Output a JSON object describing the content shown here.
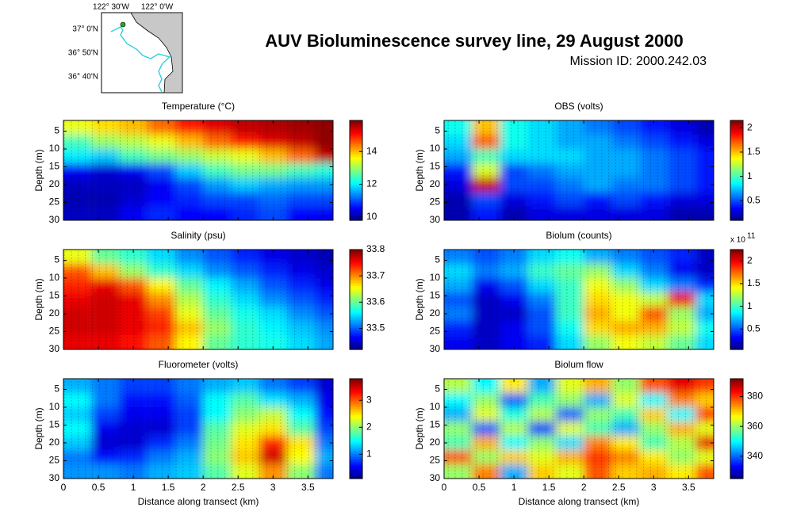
{
  "title": "AUV Bioluminescence survey line, 29 August 2000",
  "subtitle": "Mission ID: 2000.242.03",
  "map": {
    "lon_labels": [
      "122° 30'W",
      "122° 0'W"
    ],
    "lat_labels": [
      "37° 0'N",
      "36° 50'N",
      "36° 40'N"
    ]
  },
  "chart_data": [
    {
      "type": "heatmap",
      "title": "Temperature (°C)",
      "ylabel": "Depth (m)",
      "colormap": "jet",
      "xtick_labels": false,
      "x": [
        0.2,
        0.6,
        1.0,
        1.4,
        1.8,
        2.2,
        2.6,
        3.0,
        3.4,
        3.8
      ],
      "y": [
        4,
        8,
        12,
        16,
        20,
        24,
        28
      ],
      "values": [
        [
          13.5,
          13.8,
          14,
          14.5,
          15,
          15.3,
          15.5,
          15.6,
          15.7,
          15.8
        ],
        [
          12.5,
          13,
          13.2,
          13.5,
          14,
          14.5,
          15,
          15.3,
          15.5,
          15.8
        ],
        [
          12,
          11.8,
          12.5,
          12.8,
          13,
          13.3,
          13.5,
          14,
          14.5,
          15.5
        ],
        [
          10.5,
          10.3,
          10.5,
          11,
          11.8,
          12.5,
          12.8,
          12.8,
          12.5,
          12.3
        ],
        [
          10.2,
          10.2,
          10.2,
          10.5,
          11,
          11.5,
          11.8,
          11.6,
          11.5,
          11.5
        ],
        [
          10.1,
          10.1,
          10.3,
          10.6,
          10.8,
          11,
          11,
          11.2,
          11,
          11
        ],
        [
          10.2,
          10.2,
          10.5,
          10.8,
          10.6,
          10.6,
          10.8,
          11,
          10.6,
          10.5
        ]
      ],
      "xlim": [
        0,
        3.86
      ],
      "ylim": [
        2,
        30
      ],
      "y_reversed": true,
      "xticks": [
        0,
        0.5,
        1,
        1.5,
        2,
        2.5,
        3,
        3.5
      ],
      "yticks": [
        5,
        10,
        15,
        20,
        25,
        30
      ],
      "zlim": [
        9.8,
        15.9
      ],
      "zticks": [
        10,
        12,
        14
      ]
    },
    {
      "type": "heatmap",
      "title": "OBS (volts)",
      "ylabel": "Depth (m)",
      "colormap": "jet",
      "xtick_labels": false,
      "x": [
        0.2,
        0.6,
        1.0,
        1.4,
        1.8,
        2.2,
        2.6,
        3.0,
        3.4,
        3.8
      ],
      "y": [
        4,
        8,
        12,
        16,
        20,
        24,
        28
      ],
      "values": [
        [
          0.9,
          1.5,
          0.9,
          0.8,
          0.7,
          0.6,
          0.5,
          0.4,
          0.3,
          0.2
        ],
        [
          0.8,
          1.7,
          0.9,
          0.8,
          0.7,
          0.7,
          0.6,
          0.5,
          0.4,
          0.3
        ],
        [
          0.7,
          1.0,
          0.8,
          0.8,
          0.8,
          0.7,
          0.7,
          0.6,
          0.5,
          0.4
        ],
        [
          0.4,
          1.3,
          0.5,
          0.6,
          0.7,
          0.7,
          0.7,
          0.6,
          0.5,
          0.4
        ],
        [
          0.3,
          2.0,
          0.5,
          0.5,
          0.6,
          0.7,
          0.6,
          0.6,
          0.5,
          0.4
        ],
        [
          0.2,
          0.5,
          0.3,
          0.4,
          0.5,
          0.4,
          0.5,
          0.4,
          0.3,
          0.3
        ],
        [
          0.2,
          0.4,
          0.2,
          0.3,
          0.3,
          0.3,
          0.3,
          0.3,
          0.2,
          0.2
        ]
      ],
      "xlim": [
        0,
        3.86
      ],
      "ylim": [
        2,
        30
      ],
      "y_reversed": true,
      "xticks": [
        0,
        0.5,
        1,
        1.5,
        2,
        2.5,
        3,
        3.5
      ],
      "yticks": [
        5,
        10,
        15,
        20,
        25,
        30
      ],
      "zlim": [
        0.1,
        2.15
      ],
      "zticks": [
        0.5,
        1,
        1.5,
        2
      ]
    },
    {
      "type": "heatmap",
      "title": "Salinity (psu)",
      "ylabel": "Depth (m)",
      "colormap": "jet",
      "xtick_labels": false,
      "x": [
        0.2,
        0.6,
        1.0,
        1.4,
        1.8,
        2.2,
        2.6,
        3.0,
        3.4,
        3.8
      ],
      "y": [
        4,
        8,
        12,
        16,
        20,
        24,
        28
      ],
      "values": [
        [
          33.65,
          33.6,
          33.58,
          33.55,
          33.52,
          33.5,
          33.48,
          33.46,
          33.45,
          33.44
        ],
        [
          33.72,
          33.68,
          33.62,
          33.58,
          33.55,
          33.52,
          33.5,
          33.48,
          33.46,
          33.45
        ],
        [
          33.74,
          33.76,
          33.72,
          33.66,
          33.6,
          33.56,
          33.53,
          33.5,
          33.48,
          33.46
        ],
        [
          33.76,
          33.77,
          33.76,
          33.7,
          33.63,
          33.58,
          33.55,
          33.52,
          33.5,
          33.48
        ],
        [
          33.77,
          33.77,
          33.76,
          33.73,
          33.65,
          33.6,
          33.57,
          33.55,
          33.52,
          33.5
        ],
        [
          33.77,
          33.77,
          33.76,
          33.74,
          33.68,
          33.62,
          33.58,
          33.56,
          33.54,
          33.52
        ],
        [
          33.76,
          33.76,
          33.75,
          33.72,
          33.66,
          33.6,
          33.58,
          33.57,
          33.55,
          33.53
        ]
      ],
      "xlim": [
        0,
        3.86
      ],
      "ylim": [
        2,
        30
      ],
      "y_reversed": true,
      "xticks": [
        0,
        0.5,
        1,
        1.5,
        2,
        2.5,
        3,
        3.5
      ],
      "yticks": [
        5,
        10,
        15,
        20,
        25,
        30
      ],
      "zlim": [
        33.42,
        33.8
      ],
      "zticks": [
        33.5,
        33.6,
        33.7,
        33.8
      ]
    },
    {
      "type": "heatmap",
      "title": "Biolum (counts)",
      "ylabel": "Depth (m)",
      "colormap": "jet",
      "xtick_labels": false,
      "x": [
        0.2,
        0.6,
        1.0,
        1.4,
        1.8,
        2.2,
        2.6,
        3.0,
        3.4,
        3.8
      ],
      "y": [
        4,
        8,
        12,
        16,
        20,
        24,
        28
      ],
      "values": [
        [
          0.6,
          0.5,
          0.6,
          0.8,
          0.9,
          0.7,
          0.6,
          0.5,
          0.4,
          0.2
        ],
        [
          0.8,
          0.6,
          0.7,
          1.0,
          1.1,
          1.2,
          0.8,
          0.6,
          0.3,
          0.2
        ],
        [
          0.7,
          0.3,
          0.5,
          0.8,
          1.0,
          1.4,
          1.2,
          0.8,
          0.6,
          0.4
        ],
        [
          0.5,
          0.2,
          0.3,
          0.6,
          1.0,
          1.5,
          1.4,
          1.3,
          2.0,
          0.8
        ],
        [
          0.6,
          0.2,
          0.2,
          0.5,
          1.0,
          1.6,
          1.4,
          1.8,
          1.2,
          0.7
        ],
        [
          0.4,
          0.2,
          0.3,
          0.5,
          0.9,
          1.5,
          1.6,
          1.6,
          1.3,
          0.9
        ],
        [
          0.3,
          0.2,
          0.3,
          0.4,
          0.8,
          1.2,
          1.4,
          1.3,
          1.1,
          0.8
        ]
      ],
      "xlim": [
        0,
        3.86
      ],
      "ylim": [
        2,
        30
      ],
      "y_reversed": true,
      "xticks": [
        0,
        0.5,
        1,
        1.5,
        2,
        2.5,
        3,
        3.5
      ],
      "yticks": [
        5,
        10,
        15,
        20,
        25,
        30
      ],
      "zlim": [
        0.05,
        2.25
      ],
      "zticks": [
        0.5,
        1,
        1.5,
        2
      ],
      "colorbar_scale": {
        "base": "x 10",
        "exponent": "11"
      }
    },
    {
      "type": "heatmap",
      "title": "Fluorometer (volts)",
      "ylabel": "Depth (m)",
      "xlabel": "Distance along transect (km)",
      "colormap": "jet",
      "xtick_labels": true,
      "x": [
        0.2,
        0.6,
        1.0,
        1.4,
        1.8,
        2.2,
        2.6,
        3.0,
        3.4,
        3.8
      ],
      "y": [
        4,
        8,
        12,
        16,
        20,
        24,
        28
      ],
      "values": [
        [
          1.2,
          1.0,
          0.8,
          0.8,
          1.0,
          1.2,
          1.3,
          1.0,
          0.8,
          0.4
        ],
        [
          1.5,
          1.0,
          0.6,
          0.6,
          0.9,
          1.5,
          1.8,
          1.4,
          1.2,
          0.5
        ],
        [
          1.3,
          0.8,
          0.5,
          0.5,
          0.8,
          1.5,
          2.0,
          2.2,
          1.5,
          0.6
        ],
        [
          1.5,
          0.5,
          0.4,
          0.4,
          0.8,
          1.8,
          2.3,
          2.5,
          1.8,
          0.8
        ],
        [
          1.3,
          0.4,
          0.4,
          0.7,
          1.0,
          1.9,
          2.5,
          3.2,
          2.5,
          1.0
        ],
        [
          1.0,
          0.6,
          0.7,
          1.0,
          1.2,
          2.0,
          2.6,
          3.5,
          2.4,
          1.2
        ],
        [
          1.1,
          1.1,
          1.0,
          1.2,
          1.3,
          1.8,
          2.3,
          2.8,
          2.0,
          1.0
        ]
      ],
      "xlim": [
        0,
        3.86
      ],
      "ylim": [
        2,
        30
      ],
      "y_reversed": true,
      "xticks": [
        0,
        0.5,
        1,
        1.5,
        2,
        2.5,
        3,
        3.5
      ],
      "yticks": [
        5,
        10,
        15,
        20,
        25,
        30
      ],
      "zlim": [
        0.1,
        3.8
      ],
      "zticks": [
        1,
        2,
        3
      ]
    },
    {
      "type": "heatmap",
      "title": "Biolum flow",
      "ylabel": "Depth (m)",
      "xlabel": "Distance along transect (km)",
      "colormap": "jet",
      "xtick_labels": true,
      "x": [
        0.2,
        0.6,
        1.0,
        1.4,
        1.8,
        2.2,
        2.6,
        3.0,
        3.4,
        3.8
      ],
      "y": [
        4,
        8,
        12,
        16,
        20,
        24,
        28
      ],
      "values": [
        [
          362,
          350,
          368,
          345,
          365,
          372,
          360,
          378,
          385,
          380
        ],
        [
          350,
          360,
          340,
          355,
          360,
          345,
          365,
          350,
          375,
          370
        ],
        [
          345,
          365,
          352,
          362,
          340,
          360,
          355,
          370,
          350,
          380
        ],
        [
          360,
          340,
          362,
          338,
          365,
          355,
          345,
          360,
          372,
          365
        ],
        [
          355,
          372,
          350,
          360,
          348,
          375,
          368,
          355,
          362,
          385
        ],
        [
          378,
          360,
          370,
          365,
          372,
          380,
          375,
          368,
          360,
          365
        ],
        [
          360,
          375,
          345,
          370,
          365,
          378,
          370,
          372,
          368,
          378
        ]
      ],
      "xlim": [
        0,
        3.86
      ],
      "ylim": [
        2,
        30
      ],
      "y_reversed": true,
      "xticks": [
        0,
        0.5,
        1,
        1.5,
        2,
        2.5,
        3,
        3.5
      ],
      "yticks": [
        5,
        10,
        15,
        20,
        25,
        30
      ],
      "zlim": [
        325,
        392
      ],
      "zticks": [
        340,
        360,
        380
      ]
    }
  ]
}
